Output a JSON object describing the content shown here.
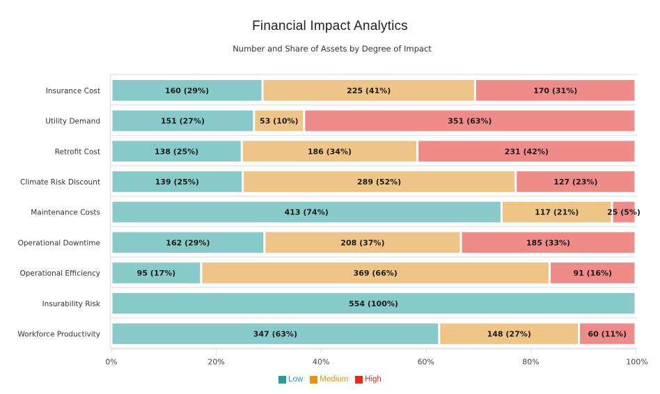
{
  "chart_data": {
    "type": "bar",
    "orientation": "horizontal",
    "stacked": true,
    "normalized": true,
    "title": "Financial Impact Analytics",
    "subtitle": "Number and Share of Assets by Degree of Impact",
    "xlabel": "",
    "ylabel": "",
    "xlim": [
      0,
      100
    ],
    "x_ticks": [
      "0%",
      "20%",
      "40%",
      "60%",
      "80%",
      "100%"
    ],
    "x_tick_values": [
      0,
      20,
      40,
      60,
      80,
      100
    ],
    "grid": false,
    "legend_position": "bottom-center",
    "categories": [
      "Insurance Cost",
      "Utility Demand",
      "Retrofit Cost",
      "Climate Risk Discount",
      "Maintenance Costs",
      "Operational Downtime",
      "Operational Efficiency",
      "Insurability Risk",
      "Workforce Productivity"
    ],
    "series": [
      {
        "name": "Low",
        "color": "#88caca",
        "legend_color": "#2a9a9a",
        "values": [
          160,
          151,
          138,
          139,
          413,
          162,
          95,
          554,
          347
        ],
        "percents": [
          29,
          27,
          25,
          25,
          74,
          29,
          17,
          100,
          63
        ]
      },
      {
        "name": "Medium",
        "color": "#efc587",
        "legend_color": "#e8920f",
        "values": [
          225,
          53,
          186,
          289,
          117,
          208,
          369,
          0,
          148
        ],
        "percents": [
          41,
          10,
          34,
          52,
          21,
          37,
          66,
          0,
          27
        ]
      },
      {
        "name": "High",
        "color": "#ef8b88",
        "legend_color": "#e02a1a",
        "values": [
          170,
          351,
          231,
          127,
          25,
          185,
          91,
          0,
          60
        ],
        "percents": [
          31,
          63,
          42,
          23,
          5,
          33,
          16,
          0,
          11
        ]
      }
    ]
  }
}
